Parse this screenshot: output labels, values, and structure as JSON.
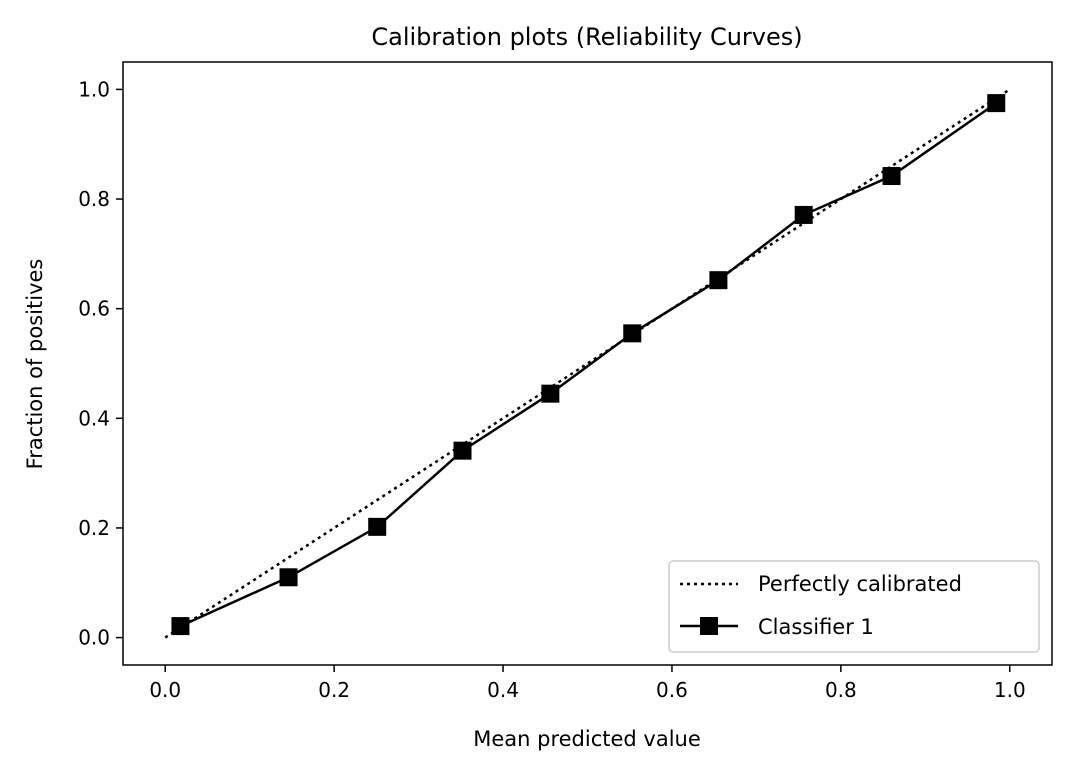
{
  "chart_data": {
    "type": "line",
    "title": "Calibration plots  (Reliability Curves)",
    "xlabel": "Mean predicted value",
    "ylabel": "Fraction of positives",
    "xlim": [
      -0.05,
      1.05
    ],
    "ylim": [
      -0.05,
      1.05
    ],
    "xticks": [
      0.0,
      0.2,
      0.4,
      0.6,
      0.8,
      1.0
    ],
    "xtick_labels": [
      "0.0",
      "0.2",
      "0.4",
      "0.6",
      "0.8",
      "1.0"
    ],
    "yticks": [
      0.0,
      0.2,
      0.4,
      0.6,
      0.8,
      1.0
    ],
    "ytick_labels": [
      "0.0",
      "0.2",
      "0.4",
      "0.6",
      "0.8",
      "1.0"
    ],
    "grid": false,
    "legend_position": "lower-right",
    "series": [
      {
        "name": "Perfectly calibrated",
        "style": "dotted",
        "marker": "none",
        "color": "#000000",
        "x": [
          0.0,
          1.0
        ],
        "y": [
          0.0,
          1.0
        ]
      },
      {
        "name": "Classifier 1",
        "style": "solid",
        "marker": "square",
        "color": "#000000",
        "x": [
          0.018,
          0.146,
          0.251,
          0.352,
          0.456,
          0.553,
          0.655,
          0.756,
          0.86,
          0.984
        ],
        "y": [
          0.021,
          0.11,
          0.202,
          0.341,
          0.445,
          0.555,
          0.652,
          0.771,
          0.842,
          0.975
        ]
      }
    ]
  }
}
